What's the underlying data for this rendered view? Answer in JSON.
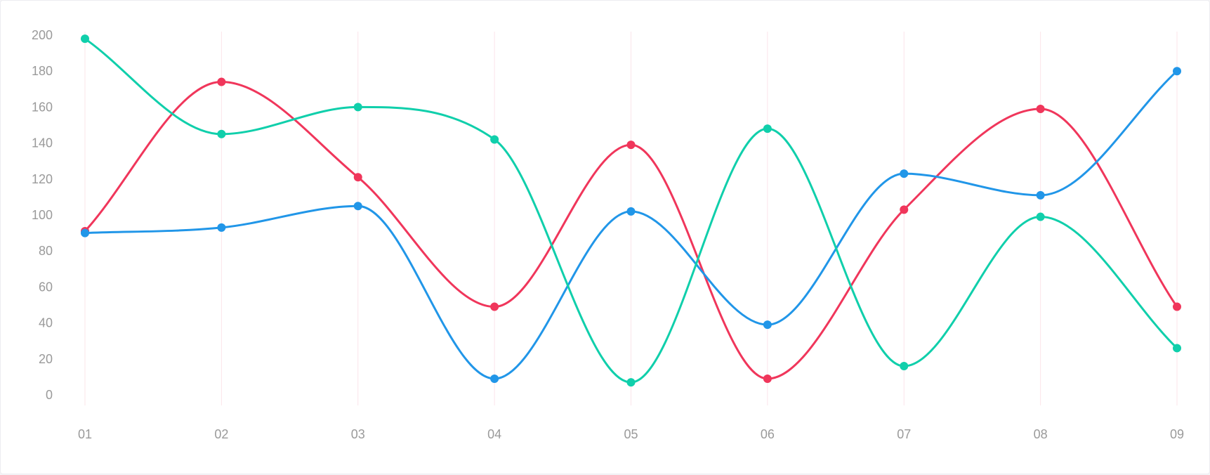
{
  "chart_data": {
    "type": "line",
    "smooth": true,
    "categories": [
      "01",
      "02",
      "03",
      "04",
      "05",
      "06",
      "07",
      "08",
      "09"
    ],
    "yticks": [
      "0",
      "20",
      "40",
      "60",
      "80",
      "100",
      "120",
      "140",
      "160",
      "180",
      "200"
    ],
    "ylim": [
      0,
      200
    ],
    "grid": {
      "vertical": true,
      "horizontal": false
    },
    "gridColor": "#fbe4ea",
    "series": [
      {
        "color": "#f0365b",
        "values": [
          91,
          174,
          121,
          49,
          139,
          9,
          103,
          159,
          49
        ]
      },
      {
        "color": "#2196e8",
        "values": [
          90,
          93,
          105,
          9,
          102,
          39,
          123,
          111,
          180
        ]
      },
      {
        "color": "#10cfab",
        "values": [
          198,
          145,
          160,
          142,
          7,
          148,
          16,
          99,
          26
        ]
      }
    ]
  }
}
